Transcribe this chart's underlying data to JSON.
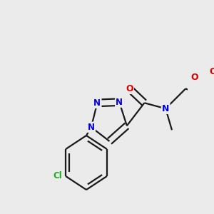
{
  "bg_color": "#ebebeb",
  "bond_color": "#1a1a1a",
  "bond_width": 1.6,
  "dbo": 0.016,
  "atom_colors": {
    "N": "#0000dd",
    "O": "#dd0000",
    "Cl": "#22aa22",
    "C": "#1a1a1a"
  },
  "fs": 9.0
}
